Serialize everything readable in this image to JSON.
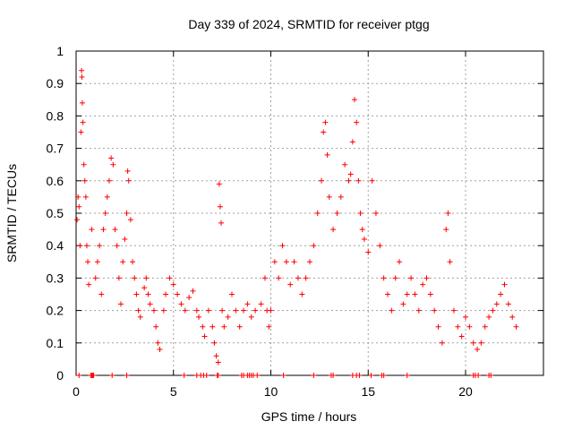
{
  "chart_data": {
    "type": "scatter",
    "title": "Day 339 of 2024, SRMTID for receiver ptgg",
    "xlabel": "GPS time / hours",
    "ylabel": "SRMTID / TECUs",
    "xlim": [
      0,
      24
    ],
    "ylim": [
      0,
      1
    ],
    "x_ticks": [
      0,
      5,
      10,
      15,
      20
    ],
    "y_ticks": [
      0,
      0.1,
      0.2,
      0.3,
      0.4,
      0.5,
      0.6,
      0.7,
      0.8,
      0.9,
      1
    ],
    "y_tick_labels": [
      "0",
      "0.1",
      "0.2",
      "0.3",
      "0.4",
      "0.5",
      "0.6",
      "0.7",
      "0.8",
      "0.9",
      "1"
    ],
    "grid": true,
    "marker": "+",
    "series_color": "#ff0000",
    "series": [
      {
        "name": "SRMTID",
        "points": [
          [
            0.05,
            0.48
          ],
          [
            0.1,
            0.55
          ],
          [
            0.15,
            0.52
          ],
          [
            0.2,
            0.4
          ],
          [
            0.25,
            0.75
          ],
          [
            0.28,
            0.94
          ],
          [
            0.3,
            0.92
          ],
          [
            0.32,
            0.84
          ],
          [
            0.35,
            0.78
          ],
          [
            0.4,
            0.65
          ],
          [
            0.45,
            0.6
          ],
          [
            0.5,
            0.55
          ],
          [
            0.55,
            0.4
          ],
          [
            0.6,
            0.35
          ],
          [
            0.65,
            0.28
          ],
          [
            0.8,
            0.45
          ],
          [
            1.0,
            0.3
          ],
          [
            1.1,
            0.35
          ],
          [
            1.2,
            0.4
          ],
          [
            1.3,
            0.25
          ],
          [
            1.4,
            0.45
          ],
          [
            1.5,
            0.5
          ],
          [
            1.6,
            0.55
          ],
          [
            1.7,
            0.6
          ],
          [
            1.8,
            0.67
          ],
          [
            1.9,
            0.65
          ],
          [
            2.0,
            0.45
          ],
          [
            2.1,
            0.4
          ],
          [
            2.2,
            0.3
          ],
          [
            2.3,
            0.22
          ],
          [
            2.4,
            0.35
          ],
          [
            2.5,
            0.42
          ],
          [
            2.6,
            0.5
          ],
          [
            2.65,
            0.63
          ],
          [
            2.7,
            0.6
          ],
          [
            2.8,
            0.48
          ],
          [
            2.9,
            0.35
          ],
          [
            3.0,
            0.3
          ],
          [
            3.1,
            0.25
          ],
          [
            3.2,
            0.2
          ],
          [
            3.3,
            0.18
          ],
          [
            3.5,
            0.27
          ],
          [
            3.6,
            0.3
          ],
          [
            3.7,
            0.25
          ],
          [
            3.8,
            0.22
          ],
          [
            4.0,
            0.2
          ],
          [
            4.1,
            0.15
          ],
          [
            4.2,
            0.1
          ],
          [
            4.3,
            0.08
          ],
          [
            4.5,
            0.2
          ],
          [
            4.6,
            0.25
          ],
          [
            4.8,
            0.3
          ],
          [
            5.0,
            0.28
          ],
          [
            5.2,
            0.25
          ],
          [
            5.4,
            0.22
          ],
          [
            5.6,
            0.2
          ],
          [
            5.8,
            0.24
          ],
          [
            6.0,
            0.26
          ],
          [
            6.2,
            0.2
          ],
          [
            6.3,
            0.18
          ],
          [
            6.5,
            0.15
          ],
          [
            6.6,
            0.12
          ],
          [
            6.8,
            0.2
          ],
          [
            7.0,
            0.15
          ],
          [
            7.1,
            0.1
          ],
          [
            7.2,
            0.06
          ],
          [
            7.3,
            0.04
          ],
          [
            7.35,
            0.59
          ],
          [
            7.4,
            0.52
          ],
          [
            7.45,
            0.47
          ],
          [
            7.5,
            0.2
          ],
          [
            7.6,
            0.15
          ],
          [
            7.8,
            0.18
          ],
          [
            8.0,
            0.25
          ],
          [
            8.2,
            0.2
          ],
          [
            8.4,
            0.15
          ],
          [
            8.6,
            0.2
          ],
          [
            8.8,
            0.22
          ],
          [
            9.0,
            0.18
          ],
          [
            9.2,
            0.2
          ],
          [
            9.5,
            0.22
          ],
          [
            9.7,
            0.3
          ],
          [
            9.8,
            0.2
          ],
          [
            9.9,
            0.15
          ],
          [
            10.0,
            0.2
          ],
          [
            10.2,
            0.35
          ],
          [
            10.4,
            0.3
          ],
          [
            10.6,
            0.4
          ],
          [
            10.8,
            0.35
          ],
          [
            11.0,
            0.28
          ],
          [
            11.2,
            0.35
          ],
          [
            11.4,
            0.3
          ],
          [
            11.6,
            0.25
          ],
          [
            11.8,
            0.3
          ],
          [
            12.0,
            0.35
          ],
          [
            12.2,
            0.4
          ],
          [
            12.4,
            0.5
          ],
          [
            12.6,
            0.6
          ],
          [
            12.7,
            0.75
          ],
          [
            12.8,
            0.78
          ],
          [
            12.9,
            0.68
          ],
          [
            13.0,
            0.55
          ],
          [
            13.2,
            0.45
          ],
          [
            13.4,
            0.5
          ],
          [
            13.6,
            0.55
          ],
          [
            13.8,
            0.65
          ],
          [
            14.0,
            0.6
          ],
          [
            14.1,
            0.62
          ],
          [
            14.2,
            0.72
          ],
          [
            14.3,
            0.85
          ],
          [
            14.4,
            0.78
          ],
          [
            14.5,
            0.6
          ],
          [
            14.6,
            0.5
          ],
          [
            14.7,
            0.45
          ],
          [
            14.8,
            0.42
          ],
          [
            15.0,
            0.38
          ],
          [
            15.2,
            0.6
          ],
          [
            15.4,
            0.5
          ],
          [
            15.6,
            0.4
          ],
          [
            15.8,
            0.3
          ],
          [
            16.0,
            0.25
          ],
          [
            16.2,
            0.2
          ],
          [
            16.4,
            0.3
          ],
          [
            16.6,
            0.35
          ],
          [
            16.8,
            0.22
          ],
          [
            17.0,
            0.25
          ],
          [
            17.2,
            0.3
          ],
          [
            17.4,
            0.25
          ],
          [
            17.6,
            0.2
          ],
          [
            17.8,
            0.28
          ],
          [
            18.0,
            0.3
          ],
          [
            18.2,
            0.25
          ],
          [
            18.4,
            0.2
          ],
          [
            18.6,
            0.15
          ],
          [
            18.8,
            0.1
          ],
          [
            19.0,
            0.45
          ],
          [
            19.1,
            0.5
          ],
          [
            19.2,
            0.35
          ],
          [
            19.4,
            0.2
          ],
          [
            19.6,
            0.15
          ],
          [
            19.8,
            0.12
          ],
          [
            20.0,
            0.18
          ],
          [
            20.2,
            0.15
          ],
          [
            20.4,
            0.1
          ],
          [
            20.6,
            0.08
          ],
          [
            20.8,
            0.1
          ],
          [
            21.0,
            0.15
          ],
          [
            21.2,
            0.18
          ],
          [
            21.4,
            0.2
          ],
          [
            21.6,
            0.22
          ],
          [
            21.8,
            0.25
          ],
          [
            22.0,
            0.28
          ],
          [
            22.2,
            0.22
          ],
          [
            22.4,
            0.18
          ],
          [
            22.6,
            0.15
          ]
        ]
      }
    ],
    "zero_points_x": [
      0.15,
      0.75,
      0.8,
      0.85,
      0.9,
      1.85,
      2.6,
      5.55,
      6.2,
      6.4,
      6.55,
      6.7,
      7.25,
      7.3,
      8.5,
      8.6,
      8.8,
      8.9,
      9.0,
      9.1,
      9.3,
      10.65,
      12.2,
      13.1,
      13.2,
      14.2,
      14.4,
      14.55,
      15.15,
      15.7,
      15.8,
      17.0,
      20.4,
      20.5,
      20.65,
      21.2,
      21.3
    ]
  }
}
